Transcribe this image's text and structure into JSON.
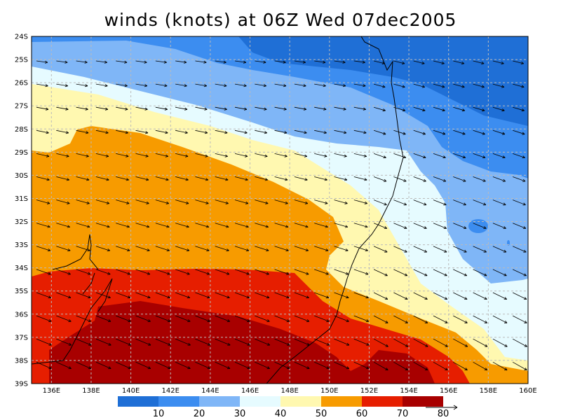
{
  "title": "winds (knots) at 06Z Wed 07dec2005",
  "map": {
    "lat_range": [
      -39,
      -24
    ],
    "lon_range": [
      135,
      160
    ],
    "lat_labels": [
      "24S",
      "25S",
      "26S",
      "27S",
      "28S",
      "29S",
      "30S",
      "31S",
      "32S",
      "33S",
      "34S",
      "35S",
      "36S",
      "37S",
      "38S",
      "39S"
    ],
    "lon_labels": [
      "136E",
      "138E",
      "140E",
      "142E",
      "144E",
      "146E",
      "148E",
      "150E",
      "152E",
      "154E",
      "156E",
      "158E",
      "160E"
    ],
    "gridlines": true,
    "coastline": true,
    "field": "wind speed (shaded) with wind vectors"
  },
  "colorbar": {
    "labels": [
      "10",
      "20",
      "30",
      "40",
      "50",
      "60",
      "70",
      "80"
    ],
    "levels": [
      10,
      20,
      30,
      40,
      50,
      60,
      70
    ],
    "colors": [
      "#1f6fd6",
      "#3c8df0",
      "#7fb6f7",
      "#e6fbff",
      "#fff8b0",
      "#f79b00",
      "#e61e00",
      "#a80000"
    ],
    "vector_scale": "80"
  }
}
